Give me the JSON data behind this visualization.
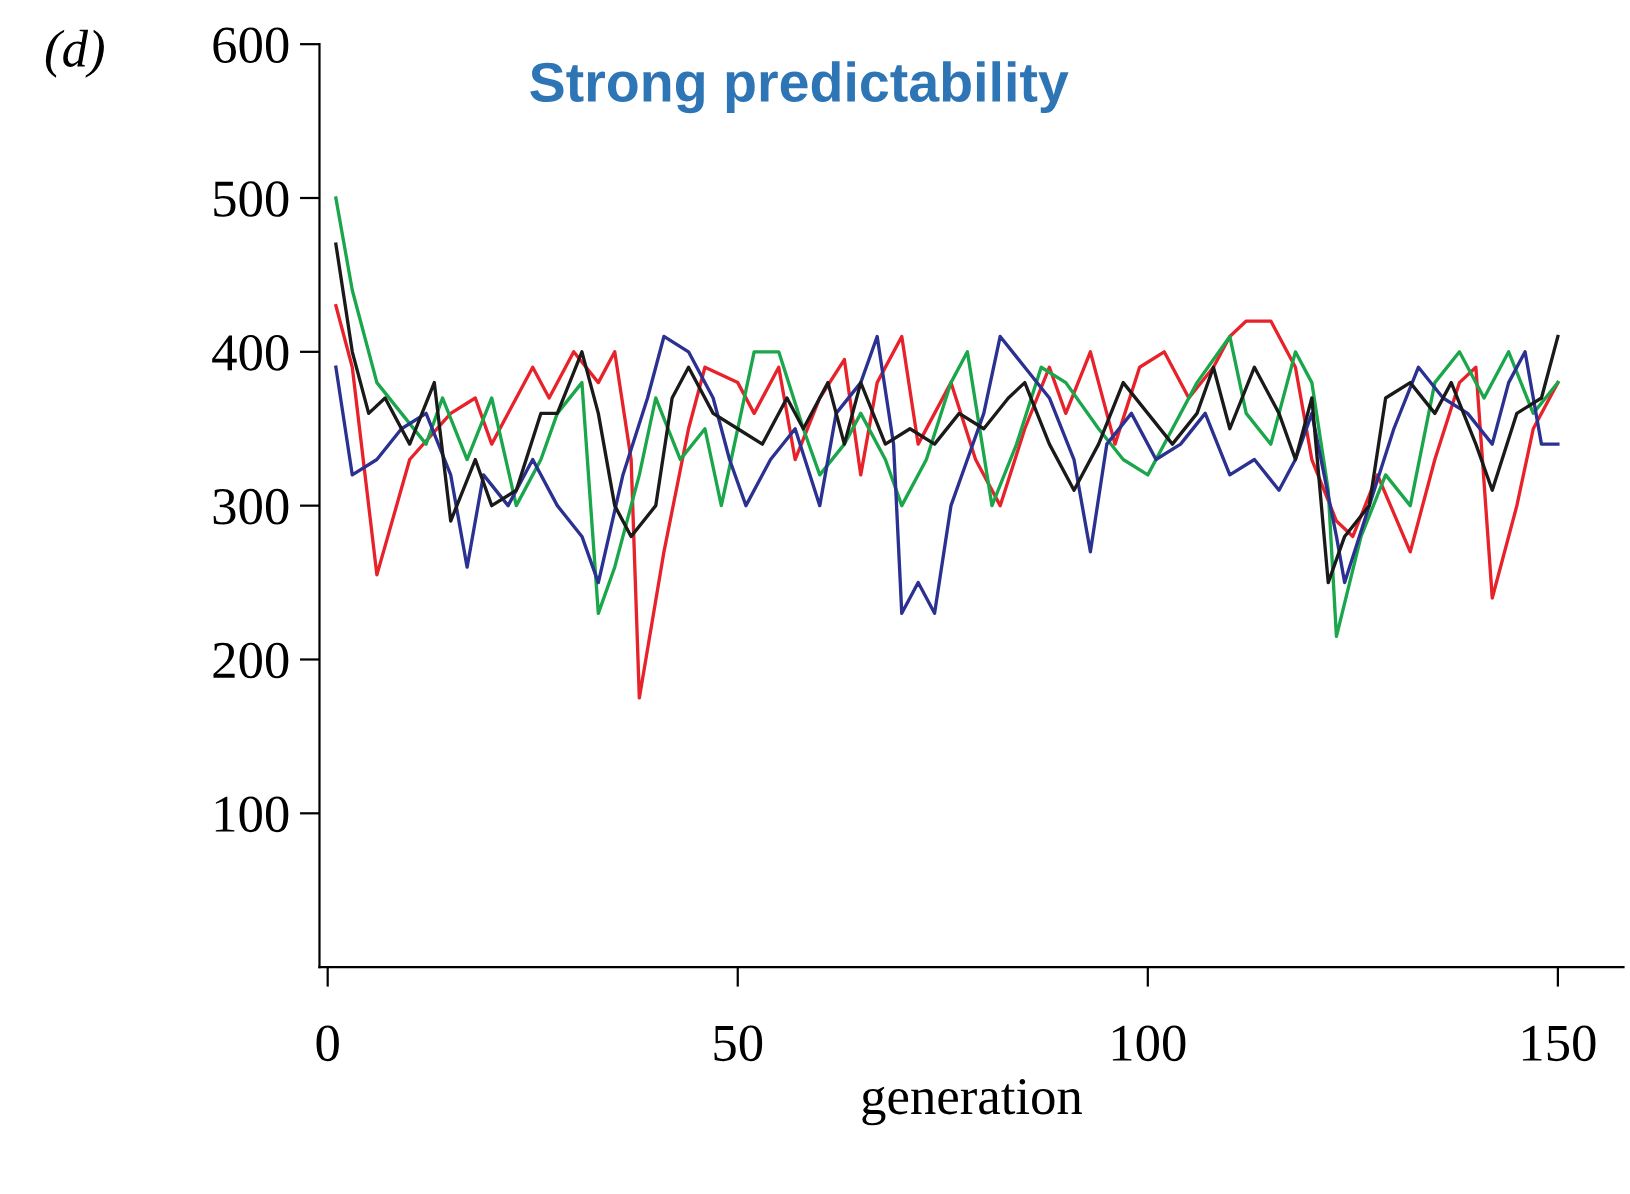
{
  "chart_data": {
    "type": "line",
    "title": "Strong predictability",
    "xlabel": "generation",
    "annotations": [
      "(d)"
    ],
    "xlim": [
      -1,
      158
    ],
    "ylim": [
      0,
      600
    ],
    "xticks": [
      0,
      50,
      100,
      150
    ],
    "yticks": [
      100,
      200,
      300,
      400,
      500,
      600
    ],
    "grid": false,
    "legend": false,
    "marker": "none",
    "line_style": "solid",
    "series": [
      {
        "color": "#e8222a",
        "x": [
          1,
          3,
          6,
          10,
          15,
          18,
          20,
          25,
          27,
          30,
          33,
          35,
          37,
          38,
          41,
          44,
          46,
          50,
          52,
          55,
          57,
          60,
          63,
          65,
          67,
          70,
          72,
          76,
          79,
          82,
          85,
          88,
          90,
          93,
          96,
          99,
          102,
          105,
          108,
          110,
          112,
          115,
          118,
          120,
          123,
          125,
          128,
          132,
          135,
          138,
          140,
          142,
          145,
          147,
          149,
          150
        ],
        "values": [
          430,
          390,
          255,
          330,
          360,
          370,
          340,
          390,
          370,
          400,
          380,
          400,
          330,
          175,
          270,
          350,
          390,
          380,
          360,
          390,
          330,
          370,
          395,
          320,
          380,
          410,
          340,
          380,
          330,
          300,
          350,
          390,
          360,
          400,
          340,
          390,
          400,
          370,
          390,
          410,
          420,
          420,
          390,
          330,
          290,
          280,
          320,
          270,
          330,
          380,
          390,
          240,
          300,
          350,
          370,
          380
        ]
      },
      {
        "color": "#1aa64a",
        "x": [
          1,
          3,
          6,
          9,
          12,
          14,
          17,
          20,
          23,
          26,
          28,
          31,
          33,
          35,
          38,
          40,
          43,
          46,
          48,
          52,
          55,
          58,
          60,
          63,
          65,
          68,
          70,
          73,
          76,
          78,
          81,
          84,
          87,
          90,
          94,
          97,
          100,
          103,
          106,
          110,
          112,
          115,
          118,
          120,
          122,
          123,
          126,
          129,
          132,
          135,
          138,
          141,
          144,
          147,
          150
        ],
        "values": [
          500,
          440,
          380,
          360,
          340,
          370,
          330,
          370,
          300,
          330,
          360,
          380,
          230,
          260,
          320,
          370,
          330,
          350,
          300,
          400,
          400,
          350,
          320,
          340,
          360,
          330,
          300,
          330,
          380,
          400,
          300,
          340,
          390,
          380,
          350,
          330,
          320,
          350,
          380,
          410,
          360,
          340,
          400,
          380,
          310,
          215,
          280,
          320,
          300,
          380,
          400,
          370,
          400,
          360,
          380
        ]
      },
      {
        "color": "#2b3190",
        "x": [
          1,
          3,
          6,
          9,
          12,
          15,
          17,
          19,
          22,
          25,
          28,
          31,
          33,
          36,
          39,
          41,
          44,
          47,
          49,
          51,
          54,
          57,
          60,
          62,
          65,
          67,
          69,
          70,
          72,
          74,
          76,
          78,
          80,
          82,
          85,
          88,
          91,
          93,
          95,
          98,
          101,
          104,
          107,
          110,
          113,
          116,
          118,
          120,
          123,
          124,
          127,
          130,
          133,
          136,
          139,
          142,
          144,
          146,
          148,
          150
        ],
        "values": [
          390,
          320,
          330,
          350,
          360,
          320,
          260,
          320,
          300,
          330,
          300,
          280,
          250,
          320,
          370,
          410,
          400,
          370,
          330,
          300,
          330,
          350,
          300,
          360,
          380,
          410,
          340,
          230,
          250,
          230,
          300,
          330,
          360,
          410,
          390,
          370,
          330,
          270,
          340,
          360,
          330,
          340,
          360,
          320,
          330,
          310,
          330,
          360,
          280,
          250,
          300,
          350,
          390,
          370,
          360,
          340,
          380,
          400,
          340,
          340
        ]
      },
      {
        "color": "#1a1a1a",
        "x": [
          1,
          3,
          5,
          7,
          10,
          13,
          15,
          18,
          20,
          23,
          26,
          28,
          31,
          33,
          35,
          37,
          40,
          42,
          44,
          47,
          50,
          53,
          56,
          58,
          61,
          63,
          65,
          68,
          71,
          74,
          77,
          80,
          83,
          85,
          88,
          91,
          94,
          97,
          100,
          103,
          106,
          108,
          110,
          113,
          116,
          118,
          120,
          122,
          124,
          127,
          129,
          132,
          135,
          137,
          140,
          142,
          145,
          148,
          150
        ],
        "values": [
          470,
          400,
          360,
          370,
          340,
          380,
          290,
          330,
          300,
          310,
          360,
          360,
          400,
          360,
          300,
          280,
          300,
          370,
          390,
          360,
          350,
          340,
          370,
          350,
          380,
          340,
          380,
          340,
          350,
          340,
          360,
          350,
          370,
          380,
          340,
          310,
          340,
          380,
          360,
          340,
          360,
          390,
          350,
          390,
          360,
          330,
          370,
          250,
          280,
          300,
          370,
          380,
          360,
          380,
          340,
          310,
          360,
          370,
          410
        ]
      }
    ]
  }
}
